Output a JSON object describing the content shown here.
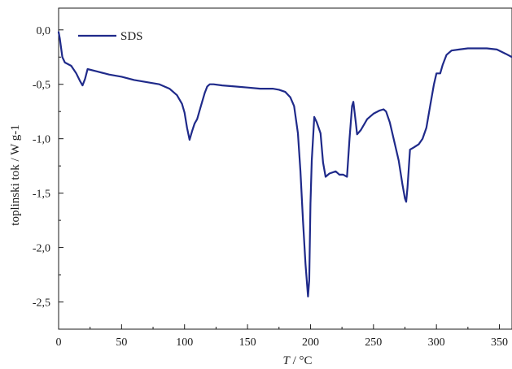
{
  "chart_data": {
    "type": "line",
    "xlabel_italic": "T",
    "xlabel_rest": " / °C",
    "ylabel": "toplinski tok / W g-1",
    "xlim": [
      0,
      360
    ],
    "ylim": [
      -2.75,
      0.2
    ],
    "xticks": [
      0,
      50,
      100,
      150,
      200,
      250,
      300,
      350
    ],
    "xtick_labels": [
      "0",
      "50",
      "100",
      "150",
      "200",
      "250",
      "300",
      "350"
    ],
    "yticks": [
      0.0,
      -0.5,
      -1.0,
      -1.5,
      -2.0,
      -2.5
    ],
    "ytick_labels": [
      "0,0",
      "-0,5",
      "-1,0",
      "-1,5",
      "-2,0",
      "-2,5"
    ],
    "grid": false,
    "legend_position": "top-left",
    "series": [
      {
        "name": "SDS",
        "color": "#1f2a8a",
        "x": [
          0,
          1,
          3,
          5,
          10,
          14,
          17,
          19,
          21,
          23,
          30,
          40,
          50,
          60,
          70,
          80,
          88,
          94,
          98,
          100,
          102,
          104,
          106,
          108,
          110,
          113,
          116,
          118,
          120,
          123,
          130,
          140,
          150,
          160,
          170,
          175,
          180,
          184,
          187,
          190,
          192,
          194,
          196,
          198,
          199,
          200,
          201,
          203,
          205,
          208,
          210,
          212,
          215,
          220,
          223,
          226,
          229,
          231,
          233,
          234,
          236,
          237,
          240,
          245,
          250,
          255,
          258,
          260,
          263,
          266,
          270,
          273,
          275,
          276,
          277,
          279,
          282,
          286,
          289,
          292,
          295,
          298,
          300,
          303,
          305,
          308,
          312,
          318,
          325,
          332,
          340,
          348,
          355,
          360
        ],
        "y": [
          -0.02,
          -0.08,
          -0.25,
          -0.3,
          -0.33,
          -0.4,
          -0.47,
          -0.51,
          -0.45,
          -0.36,
          -0.38,
          -0.41,
          -0.43,
          -0.46,
          -0.48,
          -0.5,
          -0.54,
          -0.6,
          -0.68,
          -0.76,
          -0.9,
          -1.01,
          -0.93,
          -0.86,
          -0.82,
          -0.7,
          -0.58,
          -0.52,
          -0.5,
          -0.5,
          -0.51,
          -0.52,
          -0.53,
          -0.54,
          -0.54,
          -0.55,
          -0.57,
          -0.62,
          -0.7,
          -0.95,
          -1.3,
          -1.75,
          -2.15,
          -2.45,
          -2.3,
          -1.6,
          -1.2,
          -0.8,
          -0.85,
          -0.95,
          -1.22,
          -1.35,
          -1.32,
          -1.3,
          -1.33,
          -1.33,
          -1.35,
          -1.0,
          -0.7,
          -0.66,
          -0.85,
          -0.96,
          -0.92,
          -0.82,
          -0.77,
          -0.74,
          -0.73,
          -0.75,
          -0.85,
          -1.0,
          -1.2,
          -1.42,
          -1.55,
          -1.58,
          -1.45,
          -1.1,
          -1.08,
          -1.05,
          -1.0,
          -0.9,
          -0.7,
          -0.5,
          -0.4,
          -0.4,
          -0.32,
          -0.23,
          -0.19,
          -0.18,
          -0.17,
          -0.17,
          -0.17,
          -0.18,
          -0.22,
          -0.25
        ]
      }
    ]
  }
}
